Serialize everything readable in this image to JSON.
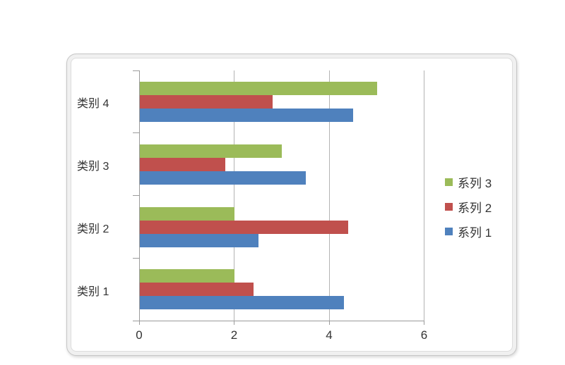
{
  "chart_data": {
    "type": "bar",
    "orientation": "horizontal",
    "title": "",
    "xlabel": "",
    "ylabel": "",
    "categories": [
      "类别 1",
      "类别 2",
      "类别 3",
      "类别 4"
    ],
    "series": [
      {
        "name": "系列 1",
        "color": "#4F81BD",
        "values": [
          4.3,
          2.5,
          3.5,
          4.5
        ]
      },
      {
        "name": "系列 2",
        "color": "#C0504D",
        "values": [
          2.4,
          4.4,
          1.8,
          2.8
        ]
      },
      {
        "name": "系列 3",
        "color": "#9BBB59",
        "values": [
          2.0,
          2.0,
          3.0,
          5.0
        ]
      }
    ],
    "xlim": [
      0,
      6
    ],
    "xticks": [
      "0",
      "2",
      "4",
      "6"
    ],
    "grid": true,
    "legend_position": "right-middle",
    "legend_entries_top_to_bottom": [
      "系列 3",
      "系列 2",
      "系列 1"
    ],
    "category_axis_top_to_bottom": [
      "类别 4",
      "类别 3",
      "类别 2",
      "类别 1"
    ]
  },
  "colors": {
    "axis": "#9B9B9B",
    "gridline": "#B3B3B3",
    "text": "#333333",
    "frame_border": "#C6C6C6",
    "handle_dot": "#9E9E9E"
  }
}
